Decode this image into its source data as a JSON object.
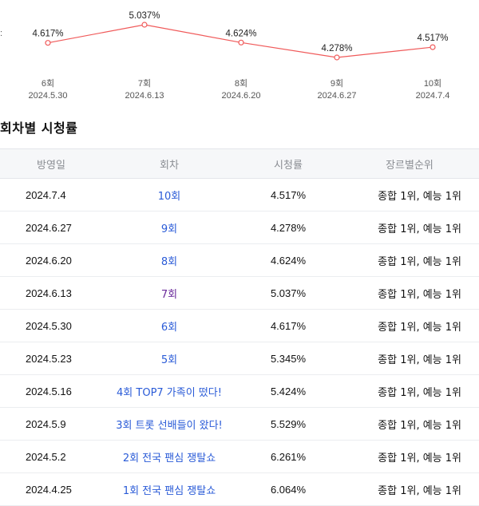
{
  "chart_data": {
    "type": "line",
    "categories": [
      "6회\n2024.5.30",
      "7회\n2024.6.13",
      "8회\n2024.6.20",
      "9회\n2024.6.27",
      "10회\n2024.7.4"
    ],
    "x_episode": [
      "6회",
      "7회",
      "8회",
      "9회",
      "10회"
    ],
    "x_date": [
      "2024.5.30",
      "2024.6.13",
      "2024.6.20",
      "2024.6.27",
      "2024.7.4"
    ],
    "values": [
      4.617,
      5.037,
      4.624,
      4.278,
      4.517
    ],
    "value_labels": [
      "4.617%",
      "5.037%",
      "4.624%",
      "4.278%",
      "4.517%"
    ],
    "line_color": "#f05a5a"
  },
  "section_title": "회차별 시청률",
  "table": {
    "headers": [
      "방영일",
      "회차",
      "시청률",
      "장르별순위"
    ],
    "rows": [
      {
        "date": "2024.7.4",
        "episode": "10회",
        "rating": "4.517%",
        "rank": "종합 1위, 예능 1위"
      },
      {
        "date": "2024.6.27",
        "episode": "9회",
        "rating": "4.278%",
        "rank": "종합 1위, 예능 1위"
      },
      {
        "date": "2024.6.20",
        "episode": "8회",
        "rating": "4.624%",
        "rank": "종합 1위, 예능 1위"
      },
      {
        "date": "2024.6.13",
        "episode": "7회",
        "rating": "5.037%",
        "rank": "종합 1위, 예능 1위",
        "visited": true
      },
      {
        "date": "2024.5.30",
        "episode": "6회",
        "rating": "4.617%",
        "rank": "종합 1위, 예능 1위"
      },
      {
        "date": "2024.5.23",
        "episode": "5회",
        "rating": "5.345%",
        "rank": "종합 1위, 예능 1위"
      },
      {
        "date": "2024.5.16",
        "episode": "4회 TOP7 가족이 떴다!",
        "rating": "5.424%",
        "rank": "종합 1위, 예능 1위"
      },
      {
        "date": "2024.5.9",
        "episode": "3회 트롯 선배들이 왔다!",
        "rating": "5.529%",
        "rank": "종합 1위, 예능 1위"
      },
      {
        "date": "2024.5.2",
        "episode": "2회 전국 팬심 쟁탈쇼",
        "rating": "6.261%",
        "rank": "종합 1위, 예능 1위"
      },
      {
        "date": "2024.4.25",
        "episode": "1회 전국 팬심 쟁탈쇼",
        "rating": "6.064%",
        "rank": "종합 1위, 예능 1위"
      }
    ]
  }
}
